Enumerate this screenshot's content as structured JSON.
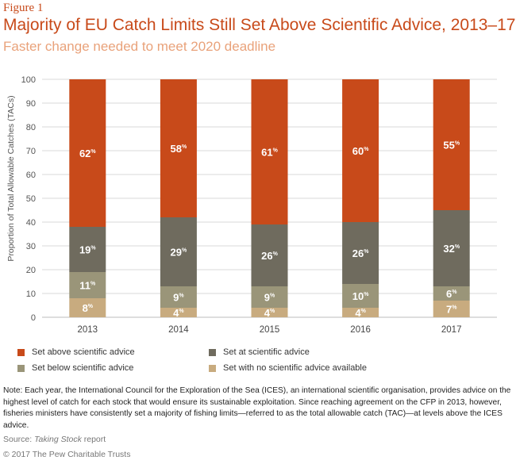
{
  "figure_label": "Figure 1",
  "title": "Majority of EU Catch Limits Still Set Above Scientific Advice, 2013–17",
  "subtitle": "Faster change needed to meet 2020 deadline",
  "note": "Note: Each year, the International Council for the Exploration of the Sea (ICES), an international scientific organisation, provides advice on the highest level of catch for each stock that would ensure its sustainable exploitation. Since reaching agreement on the CFP in 2013, however, fisheries ministers have consistently set a majority of fishing limits—referred to as the total allowable catch (TAC)—at levels above the ICES advice.",
  "source_prefix": "Source: ",
  "source_title": "Taking Stock",
  "source_suffix": " report",
  "copyright": "© 2017 The Pew Charitable Trusts",
  "chart_data": {
    "type": "bar",
    "stacked": true,
    "categories": [
      "2013",
      "2014",
      "2015",
      "2016",
      "2017"
    ],
    "ylabel": "Proportion of Total Allowable Catches (TACs)",
    "ylim": [
      0,
      100
    ],
    "yticks": [
      0,
      10,
      20,
      30,
      40,
      50,
      60,
      70,
      80,
      90,
      100
    ],
    "grid": true,
    "legend_position": "bottom",
    "value_suffix": "%",
    "series": [
      {
        "name": "Set with no scientific advice available",
        "color": "#c8ab7f",
        "values": [
          8,
          4,
          4,
          4,
          7
        ]
      },
      {
        "name": "Set below scientific advice",
        "color": "#9a9579",
        "values": [
          11,
          9,
          9,
          10,
          6
        ]
      },
      {
        "name": "Set at scientific advice",
        "color": "#6f6b5e",
        "values": [
          19,
          29,
          26,
          26,
          32
        ]
      },
      {
        "name": "Set above scientific advice",
        "color": "#c84a1a",
        "values": [
          62,
          58,
          61,
          60,
          55
        ]
      }
    ]
  }
}
